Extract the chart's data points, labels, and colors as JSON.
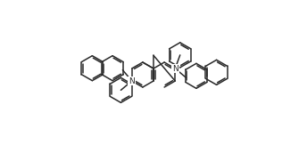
{
  "bg_color": "#ffffff",
  "line_color": "#2a2a2a",
  "lw": 1.1,
  "figsize": [
    3.44,
    1.72
  ],
  "dpi": 100
}
